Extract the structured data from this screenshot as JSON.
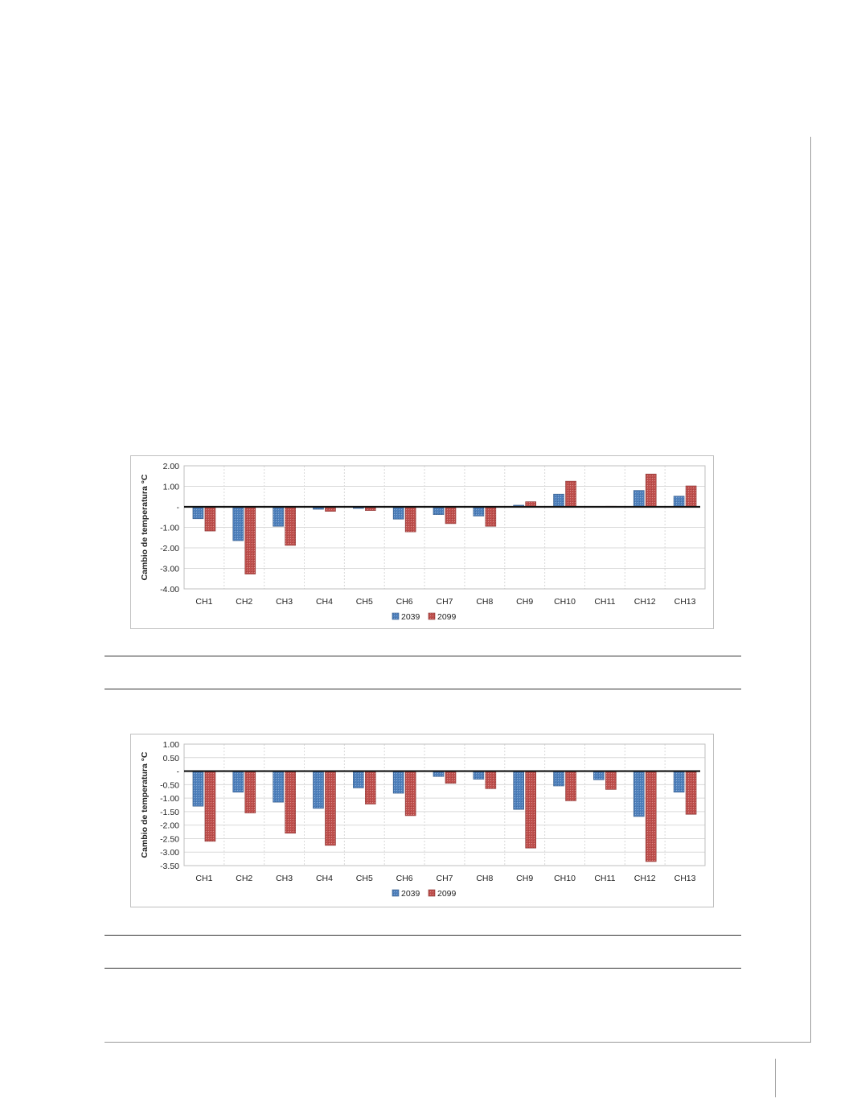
{
  "chart_data": [
    {
      "type": "bar",
      "categories": [
        "CH1",
        "CH2",
        "CH3",
        "CH4",
        "CH5",
        "CH6",
        "CH7",
        "CH8",
        "CH9",
        "CH10",
        "CH11",
        "CH12",
        "CH13"
      ],
      "series": [
        {
          "name": "2039",
          "color": "#4f81bd",
          "values": [
            -0.58,
            -1.65,
            -0.95,
            -0.12,
            -0.08,
            -0.6,
            -0.38,
            -0.45,
            0.08,
            0.62,
            0.02,
            0.8,
            0.52
          ]
        },
        {
          "name": "2099",
          "color": "#c0504d",
          "values": [
            -1.18,
            -3.28,
            -1.88,
            -0.22,
            -0.18,
            -1.22,
            -0.82,
            -0.95,
            0.25,
            1.25,
            0.03,
            1.6,
            1.02
          ]
        }
      ],
      "ylabel": "Cambio de temperatura °C",
      "ylim": [
        -4,
        2
      ],
      "yticks": [
        2,
        1,
        0,
        -1,
        -2,
        -3,
        -4
      ],
      "ytick_labels": [
        "2.00",
        "1.00",
        "-",
        "-1.00",
        "-2.00",
        "-3.00",
        "-4.00"
      ],
      "legend_position": "bottom",
      "grid": true
    },
    {
      "type": "bar",
      "categories": [
        "CH1",
        "CH2",
        "CH3",
        "CH4",
        "CH5",
        "CH6",
        "CH7",
        "CH8",
        "CH9",
        "CH10",
        "CH11",
        "CH12",
        "CH13"
      ],
      "series": [
        {
          "name": "2039",
          "color": "#4f81bd",
          "values": [
            -1.3,
            -0.78,
            -1.15,
            -1.38,
            -0.62,
            -0.82,
            -0.2,
            -0.3,
            -1.42,
            -0.55,
            -0.32,
            -1.68,
            -0.78
          ]
        },
        {
          "name": "2099",
          "color": "#c0504d",
          "values": [
            -2.6,
            -1.55,
            -2.3,
            -2.75,
            -1.22,
            -1.65,
            -0.45,
            -0.65,
            -2.85,
            -1.1,
            -0.68,
            -3.35,
            -1.6
          ]
        }
      ],
      "ylabel": "Cambio de temperatura °C",
      "ylim": [
        -3.5,
        1
      ],
      "yticks": [
        1,
        0.5,
        0,
        -0.5,
        -1,
        -1.5,
        -2,
        -2.5,
        -3,
        -3.5
      ],
      "ytick_labels": [
        "1.00",
        "0.50",
        "-",
        "-0.50",
        "-1.00",
        "-1.50",
        "-2.00",
        "-2.50",
        "-3.00",
        "-3.50"
      ],
      "legend_position": "bottom",
      "grid": true
    }
  ]
}
